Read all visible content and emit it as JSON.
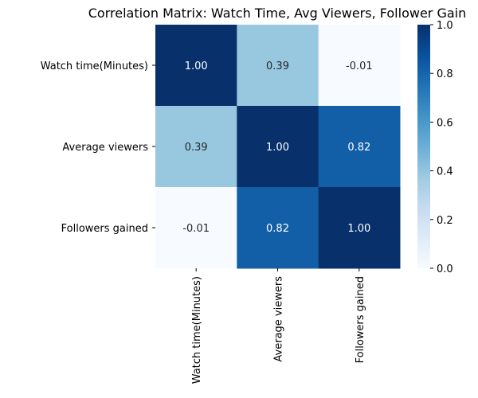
{
  "chart_data": {
    "type": "heatmap",
    "title": "Correlation Matrix: Watch Time, Avg Viewers, Follower Gain",
    "rows": [
      "Watch time(Minutes)",
      "Average viewers",
      "Followers gained"
    ],
    "columns": [
      "Watch time(Minutes)",
      "Average viewers",
      "Followers gained"
    ],
    "values": [
      [
        1.0,
        0.39,
        -0.01
      ],
      [
        0.39,
        1.0,
        0.82
      ],
      [
        -0.01,
        0.82,
        1.0
      ]
    ],
    "value_labels": [
      [
        "1.00",
        "0.39",
        "-0.01"
      ],
      [
        "0.39",
        "1.00",
        "0.82"
      ],
      [
        "-0.01",
        "0.82",
        "1.00"
      ]
    ],
    "colorbar": {
      "min": 0.0,
      "max": 1.0,
      "ticks": [
        "0.0",
        "0.2",
        "0.4",
        "0.6",
        "0.8",
        "1.0"
      ],
      "colormap": "Blues"
    },
    "xlabel": "",
    "ylabel": ""
  }
}
